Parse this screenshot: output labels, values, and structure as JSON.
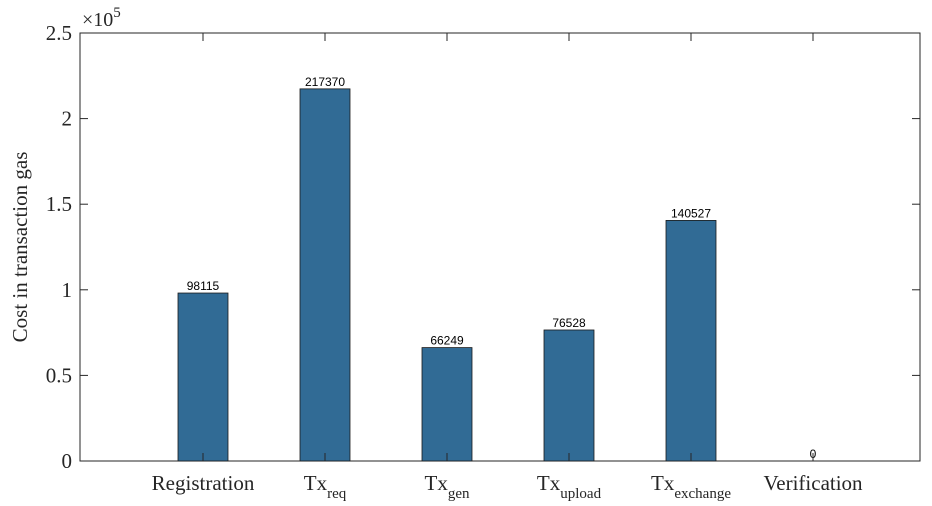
{
  "chart_data": {
    "type": "bar",
    "ylabel": "Cost in transaction gas",
    "ylim": [
      0,
      250000
    ],
    "y_scale_label": {
      "base": "×10",
      "exponent": "5"
    },
    "y_ticks": [
      {
        "value": 0,
        "label": "0"
      },
      {
        "value": 50000,
        "label": "0.5"
      },
      {
        "value": 100000,
        "label": "1"
      },
      {
        "value": 150000,
        "label": "1.5"
      },
      {
        "value": 200000,
        "label": "2"
      },
      {
        "value": 250000,
        "label": "2.5"
      }
    ],
    "categories": [
      {
        "main": "Registration",
        "sub": ""
      },
      {
        "main": "Tx",
        "sub": "req"
      },
      {
        "main": "Tx",
        "sub": "gen"
      },
      {
        "main": "Tx",
        "sub": "upload"
      },
      {
        "main": "Tx",
        "sub": "exchange"
      },
      {
        "main": "Verification",
        "sub": ""
      }
    ],
    "values": [
      98115,
      217370,
      66249,
      76528,
      140527,
      0
    ],
    "data_labels": [
      "98115",
      "217370",
      "66249",
      "76528",
      "140527",
      "0"
    ],
    "bar_color": "#316b95",
    "grid": false,
    "box": true
  }
}
